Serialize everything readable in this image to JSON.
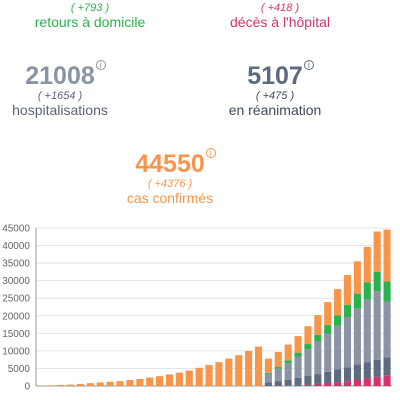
{
  "stats": {
    "retours": {
      "delta": "( +793 )",
      "label": "retours à domicile",
      "color": "#2bb24c"
    },
    "deces": {
      "delta": "( +418 )",
      "label": "décès à l'hôpital",
      "color": "#d6336c"
    },
    "hosp": {
      "value": "21008",
      "delta": "( +1654 )",
      "label": "hospitalisations",
      "info": "i"
    },
    "rea": {
      "value": "5107",
      "delta": "( +475 )",
      "label": "en réanimation",
      "info": "i"
    },
    "cas": {
      "value": "44550",
      "delta": "( +4376 )",
      "label": "cas confirmés",
      "info": "i"
    }
  },
  "chart_data": {
    "type": "bar",
    "stacked": true,
    "yticks": [
      0,
      5000,
      10000,
      15000,
      20000,
      25000,
      30000,
      35000,
      40000,
      45000
    ],
    "ylim": [
      0,
      45000
    ],
    "grid": true,
    "series_colors": [
      "#d6336c",
      "#5c6b80",
      "#8a94a3",
      "#2bb24c",
      "#f7954a"
    ],
    "series": [
      {
        "values": [
          0,
          0,
          0,
          0,
          0,
          0,
          0,
          0,
          0,
          0,
          0,
          0,
          0,
          0,
          0,
          0,
          0,
          0,
          0,
          0,
          0,
          0,
          0,
          50,
          100,
          200,
          300,
          450,
          600,
          850,
          1100,
          1350,
          1700,
          2100,
          2600,
          3050
        ]
      },
      {
        "values": [
          0,
          0,
          0,
          0,
          0,
          0,
          0,
          0,
          0,
          0,
          0,
          0,
          0,
          0,
          0,
          0,
          0,
          0,
          0,
          0,
          0,
          0,
          0,
          1000,
          1300,
          1600,
          2000,
          2400,
          2800,
          3200,
          3600,
          4000,
          4400,
          4700,
          4900,
          5100
        ]
      },
      {
        "values": [
          0,
          0,
          0,
          0,
          0,
          0,
          0,
          0,
          0,
          0,
          0,
          0,
          0,
          0,
          0,
          0,
          0,
          0,
          0,
          0,
          0,
          0,
          0,
          2400,
          3500,
          4700,
          6100,
          7600,
          9300,
          10900,
          12500,
          14300,
          16000,
          17800,
          19500,
          15900
        ]
      },
      {
        "values": [
          0,
          0,
          0,
          0,
          0,
          0,
          0,
          0,
          0,
          0,
          0,
          0,
          0,
          0,
          0,
          0,
          0,
          0,
          0,
          0,
          0,
          0,
          0,
          300,
          500,
          800,
          1100,
          1500,
          1900,
          2400,
          2900,
          3500,
          4200,
          4900,
          5500,
          5700
        ]
      },
      {
        "values": [
          100,
          200,
          300,
          400,
          600,
          800,
          1000,
          1200,
          1400,
          1700,
          2000,
          2400,
          2800,
          3300,
          3800,
          4400,
          5200,
          6000,
          6800,
          7800,
          8800,
          10000,
          11200,
          4050,
          4300,
          4500,
          4700,
          5050,
          5600,
          6550,
          7500,
          8450,
          9200,
          10100,
          11500,
          14800
        ]
      }
    ]
  }
}
